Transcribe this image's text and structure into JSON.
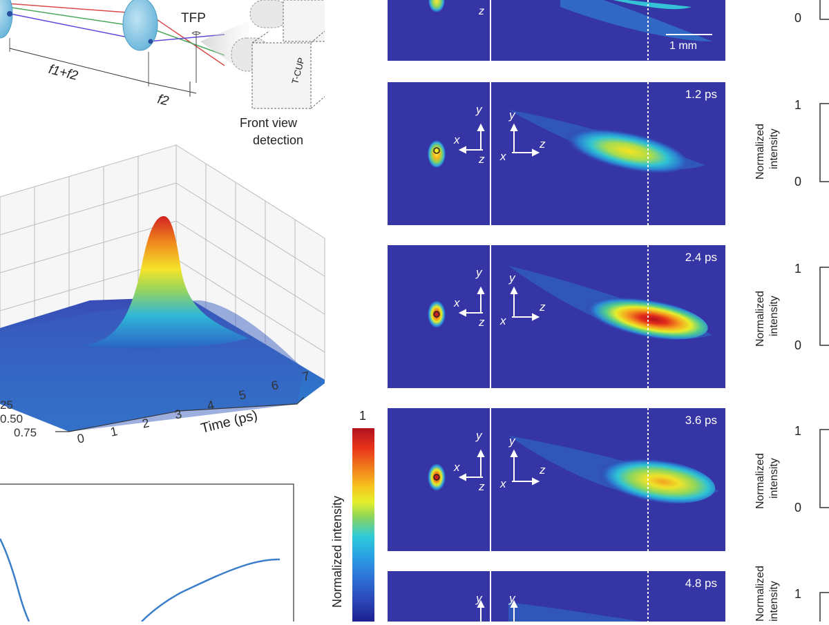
{
  "setup": {
    "tfp_label": "TFP",
    "focal_sum_label": "f1+f2",
    "focal2_label": "f2",
    "camera_label": "T-CUP",
    "detection_label_1": "Front view",
    "detection_label_2": "detection"
  },
  "surface_plot": {
    "x_axis_label": "Time (ps)",
    "x_ticks": [
      "0",
      "1",
      "2",
      "3",
      "4",
      "5",
      "6",
      "7"
    ],
    "y_ticks": [
      "25",
      "0.50",
      "0.75"
    ]
  },
  "colorbar": {
    "label": "Normalized intensity",
    "max_label": "1"
  },
  "panels": [
    {
      "time": "",
      "scale_label": "1 mm"
    },
    {
      "time": "1.2 ps"
    },
    {
      "time": "2.4 ps"
    },
    {
      "time": "3.6 ps"
    },
    {
      "time": "4.8 ps"
    }
  ],
  "axis_glyphs": {
    "x": "x",
    "y": "y",
    "z": "z"
  },
  "right_plots": {
    "ylabel_line1": "Normalized",
    "ylabel_line2": "intensity",
    "tick_top": "1",
    "tick_bottom": "0"
  },
  "colors": {
    "panel_bg": "#3535a6",
    "line_blue": "#3a7dc9"
  }
}
